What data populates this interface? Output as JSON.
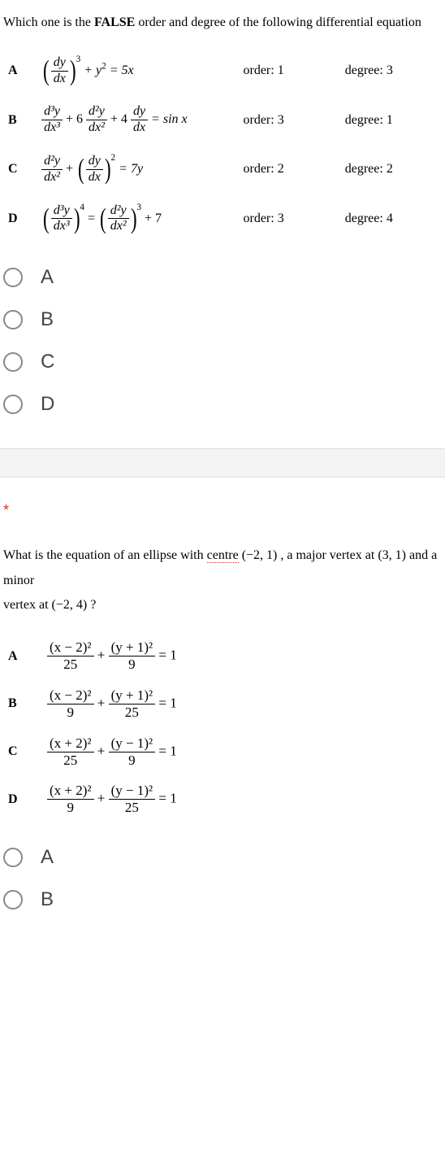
{
  "q1": {
    "prompt_pre": "Which one is the ",
    "prompt_bold": "FALSE",
    "prompt_post": " order and degree of the following differential equation",
    "rows": [
      {
        "label": "A",
        "order_text": "order: 1",
        "degree_text": "degree: 3"
      },
      {
        "label": "B",
        "order_text": "order: 3",
        "degree_text": "degree: 1"
      },
      {
        "label": "C",
        "order_text": "order: 2",
        "degree_text": "degree: 2"
      },
      {
        "label": "D",
        "order_text": "order: 3",
        "degree_text": "degree: 4"
      }
    ],
    "eqA": {
      "inner_num": "dy",
      "inner_den": "dx",
      "outer_exp": "3",
      "tail": " + y",
      "tail_exp": "2",
      "rhs": " = 5x"
    },
    "eqB": {
      "t1_num": "d³y",
      "t1_den": "dx³",
      "t2_coef": " + 6",
      "t2_num": "d²y",
      "t2_den": "dx²",
      "t3_coef": " + 4",
      "t3_num": "dy",
      "t3_den": "dx",
      "rhs": " = sin x"
    },
    "eqC": {
      "t1_num": "d²y",
      "t1_den": "dx²",
      "plus": " + ",
      "inner_num": "dy",
      "inner_den": "dx",
      "outer_exp": "2",
      "rhs": " = 7y"
    },
    "eqD": {
      "l_num": "d³y",
      "l_den": "dx³",
      "l_exp": "4",
      "eq": " = ",
      "r_num": "d²y",
      "r_den": "dx²",
      "r_exp": "3",
      "tail": " + 7"
    },
    "choices": [
      "A",
      "B",
      "C",
      "D"
    ]
  },
  "required_marker": "*",
  "q2": {
    "prompt_text_1": "What is the equation of an ellipse with ",
    "centre_word": "centre",
    "prompt_text_2": " (−2, 1) ,  a major vertex at  (3, 1)  and a minor",
    "prompt_line2": "vertex at  (−2, 4) ?",
    "rows": [
      {
        "label": "A",
        "n1": "(x − 2)²",
        "d1": "25",
        "n2": "(y + 1)²",
        "d2": "9"
      },
      {
        "label": "B",
        "n1": "(x − 2)²",
        "d1": "9",
        "n2": "(y + 1)²",
        "d2": "25"
      },
      {
        "label": "C",
        "n1": "(x + 2)²",
        "d1": "25",
        "n2": "(y − 1)²",
        "d2": "9"
      },
      {
        "label": "D",
        "n1": "(x + 2)²",
        "d1": "9",
        "n2": "(y − 1)²",
        "d2": "25"
      }
    ],
    "plus": " + ",
    "equals": " = 1",
    "choices": [
      "A",
      "B"
    ]
  },
  "colors": {
    "text": "#000000",
    "choice_text": "#444444",
    "radio_border": "#888888",
    "star": "#d93025",
    "band": "#f3f3f3"
  },
  "fonts": {
    "serif": "Times New Roman",
    "sans": "Arial",
    "base_size_pt": 12,
    "choice_size_pt": 18
  }
}
